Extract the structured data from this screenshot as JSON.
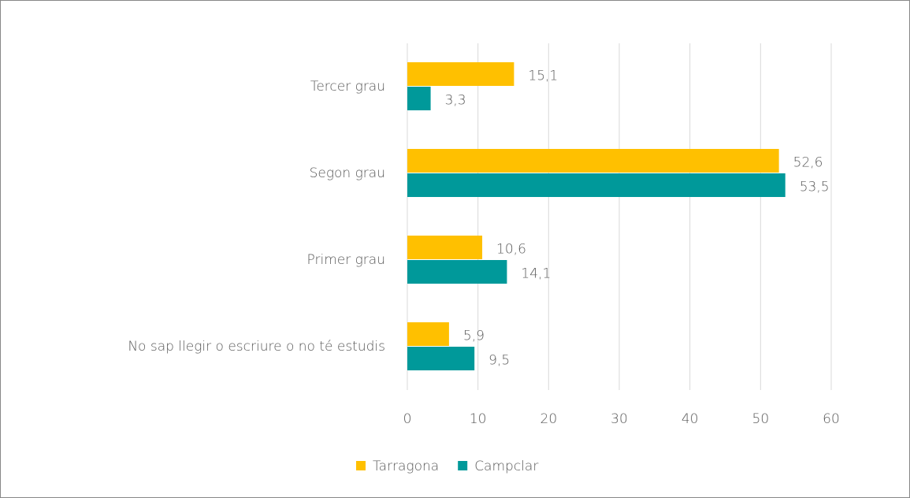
{
  "chart_data": {
    "type": "hbar",
    "categories": [
      "Tercer grau",
      "Segon grau",
      "Primer grau",
      "No sap llegir o escriure o no té estudis"
    ],
    "series": [
      {
        "name": "Tarragona",
        "color": "#ffc000",
        "values": [
          15.1,
          52.6,
          10.6,
          5.9
        ],
        "value_labels": [
          "15,1",
          "52,6",
          "10,6",
          "5,9"
        ]
      },
      {
        "name": "Campclar",
        "color": "#00999a",
        "values": [
          3.3,
          53.5,
          14.1,
          9.5
        ],
        "value_labels": [
          "3,3",
          "53,5",
          "14,1",
          "9,5"
        ]
      }
    ],
    "xlim": [
      0,
      60
    ],
    "xticks": [
      0,
      10,
      20,
      30,
      40,
      50,
      60
    ],
    "grid": true,
    "legend": "bottom"
  }
}
